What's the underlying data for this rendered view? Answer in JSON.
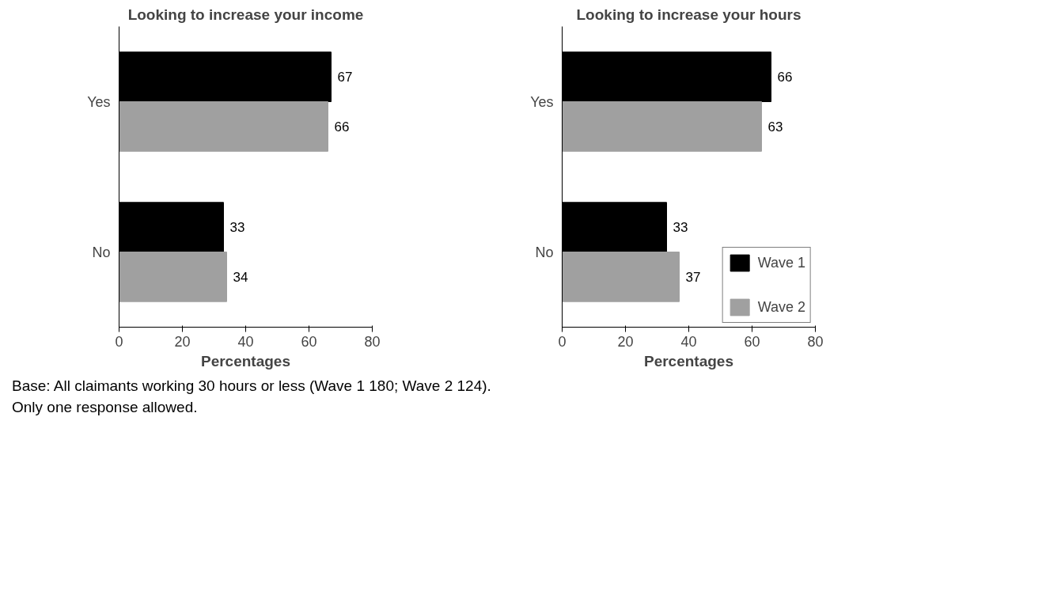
{
  "chart_data": [
    {
      "type": "bar",
      "orientation": "horizontal",
      "title": "Looking to increase your income",
      "xlabel": "Percentages",
      "categories": [
        "Yes",
        "No"
      ],
      "xlim": [
        0,
        80
      ],
      "xticks": [
        0,
        20,
        40,
        60,
        80
      ],
      "grid": false,
      "legend": false,
      "data_labels": true,
      "series": [
        {
          "color": "#000000",
          "values": [
            67,
            33
          ]
        },
        {
          "color": "#a0a0a0",
          "values": [
            66,
            34
          ]
        }
      ]
    },
    {
      "type": "bar",
      "orientation": "horizontal",
      "title": "Looking to increase your hours",
      "xlabel": "Percentages",
      "categories": [
        "Yes",
        "No"
      ],
      "xlim": [
        0,
        80
      ],
      "xticks": [
        0,
        20,
        40,
        60,
        80
      ],
      "grid": false,
      "legend": "bottom right",
      "data_labels": true,
      "series": [
        {
          "name": "Wave 1",
          "color": "#000000",
          "values": [
            66,
            33
          ]
        },
        {
          "name": "Wave 2",
          "color": "#a0a0a0",
          "values": [
            63,
            37
          ]
        }
      ],
      "annotations": [
        "Base: All claimants working 30 hours or less (Wave 1 180; Wave 2 124).",
        "Only one response allowed."
      ]
    }
  ]
}
